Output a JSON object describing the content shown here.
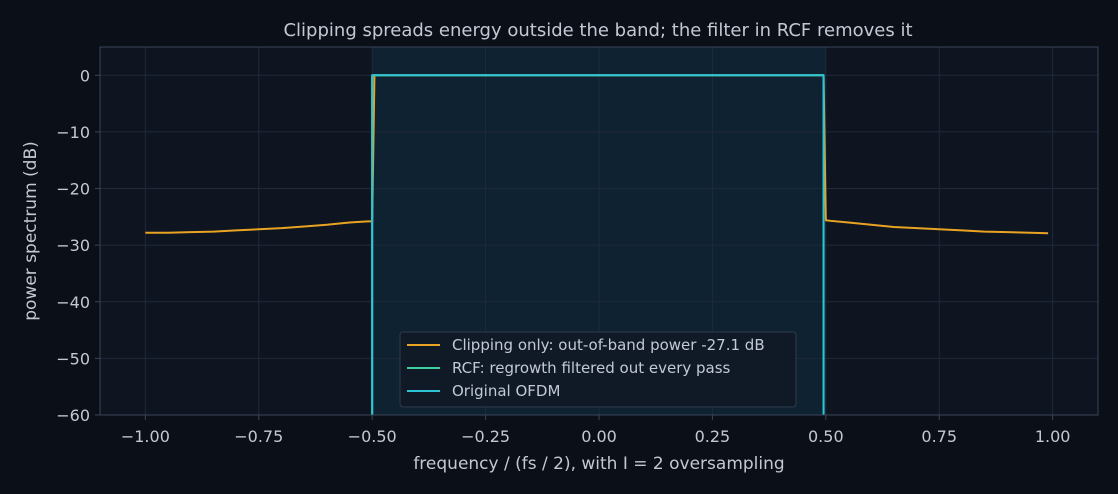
{
  "chart_data": {
    "type": "line",
    "title": "Clipping spreads energy outside the band; the filter in RCF removes it",
    "xlabel": "frequency / (fs / 2), with I = 2 oversampling",
    "ylabel": "power spectrum (dB)",
    "xlim": [
      -1.1,
      1.1
    ],
    "ylim": [
      -60,
      5
    ],
    "xticks": [
      -1.0,
      -0.75,
      -0.5,
      -0.25,
      0.0,
      0.25,
      0.5,
      0.75,
      1.0
    ],
    "xtick_labels": [
      "−1.00",
      "−0.75",
      "−0.50",
      "−0.25",
      "0.00",
      "0.25",
      "0.50",
      "0.75",
      "1.00"
    ],
    "yticks": [
      0,
      -10,
      -20,
      -30,
      -40,
      -50,
      -60
    ],
    "ytick_labels": [
      "0",
      "−10",
      "−20",
      "−30",
      "−40",
      "−50",
      "−60"
    ],
    "grid": true,
    "legend_position": "lower-center",
    "band": [
      -0.5,
      0.5
    ],
    "series": [
      {
        "name": "Clipping only: out-of-band power -27.1 dB",
        "color": "#e8a322",
        "x": [
          -1.0,
          -0.95,
          -0.9,
          -0.85,
          -0.8,
          -0.75,
          -0.7,
          -0.65,
          -0.6,
          -0.55,
          -0.51,
          -0.5,
          -0.495,
          0.495,
          0.5,
          0.51,
          0.55,
          0.6,
          0.65,
          0.7,
          0.75,
          0.8,
          0.85,
          0.9,
          0.95,
          0.99
        ],
        "y": [
          -27.8,
          -27.8,
          -27.7,
          -27.6,
          -27.4,
          -27.2,
          -27.0,
          -26.7,
          -26.4,
          -26.0,
          -25.8,
          -25.8,
          0,
          0,
          -25.6,
          -25.7,
          -26.0,
          -26.4,
          -26.8,
          -27.0,
          -27.2,
          -27.4,
          -27.6,
          -27.7,
          -27.8,
          -27.9
        ]
      },
      {
        "name": "RCF: regrowth filtered out every pass",
        "color": "#3ecf9e",
        "x": [
          -0.5,
          -0.5,
          0.495,
          0.495
        ],
        "y": [
          -60,
          0,
          0,
          -60
        ]
      },
      {
        "name": "Original OFDM",
        "color": "#2ec4d6",
        "x": [
          -0.5,
          -0.5,
          0.495,
          0.495
        ],
        "y": [
          -60,
          0,
          0,
          -60
        ]
      }
    ]
  },
  "colors": {
    "background": "#0b0f17",
    "plot_bg": "#0e1420",
    "band_fill": "#0f2231",
    "grid": "#1f2a3a",
    "axis": "#39465a",
    "text": "#c3c9d4"
  }
}
